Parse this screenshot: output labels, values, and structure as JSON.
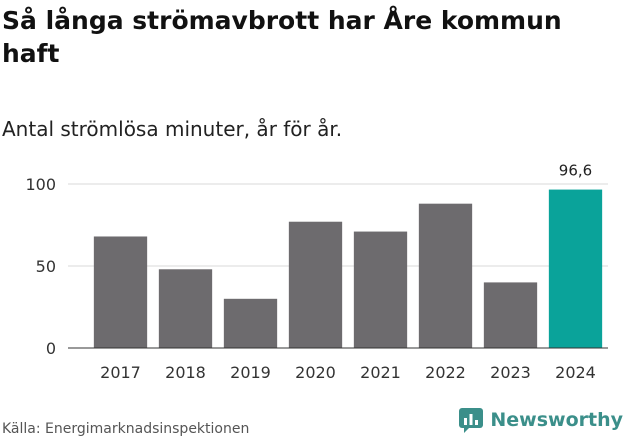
{
  "title": "Så långa strömavbrott har Åre kommun haft",
  "subtitle": "Antal strömlösa minuter, år för år.",
  "source": "Källa: Energimarknadsinspektionen",
  "brand": "Newsworthy",
  "colors": {
    "bar": "#6d6b6e",
    "highlight": "#0aa39a",
    "grid": "#d9d9d9",
    "brand": "#3b8f8a"
  },
  "chart_data": {
    "type": "bar",
    "categories": [
      "2017",
      "2018",
      "2019",
      "2020",
      "2021",
      "2022",
      "2023",
      "2024"
    ],
    "values": [
      68,
      48,
      30,
      77,
      71,
      88,
      40,
      96.6
    ],
    "highlight_index": 7,
    "labels": [
      "",
      "",
      "",
      "",
      "",
      "",
      "",
      "96,6"
    ],
    "yticks": [
      0,
      50,
      100
    ],
    "ylim": [
      0,
      100
    ],
    "title": "Så långa strömavbrott har Åre kommun haft",
    "xlabel": "",
    "ylabel": ""
  }
}
